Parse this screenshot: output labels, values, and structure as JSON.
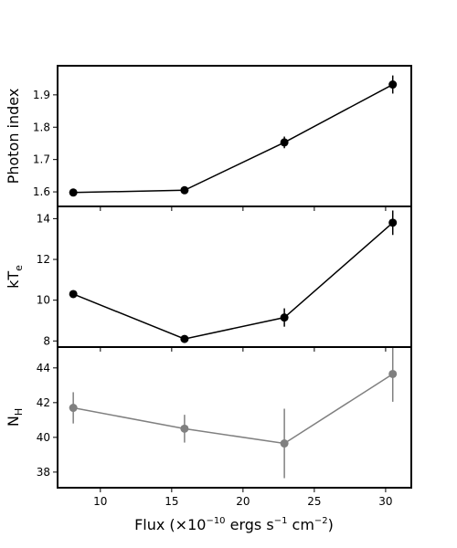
{
  "chart_data": {
    "type": "scatter",
    "xlabel": "Flux (×10⁻¹⁰ ergs s⁻¹ cm⁻²)",
    "xlabel_parts": {
      "pre": "Flux (×10",
      "e1": "−10",
      "mid": " ergs s",
      "e2": "−1",
      "mid2": " cm",
      "e3": "−2",
      "post": ")"
    },
    "xlim": [
      7,
      31.8
    ],
    "xticks": [
      10,
      15,
      20,
      25,
      30
    ],
    "x": [
      8.1,
      15.9,
      22.9,
      30.5
    ],
    "panels": [
      {
        "ylabel": "Photon index",
        "ylabel_parts": {
          "base": "Photon index",
          "sub": ""
        },
        "ylim": [
          1.555,
          1.99
        ],
        "yticks": [
          1.6,
          1.7,
          1.8,
          1.9
        ],
        "ytick_labels": [
          "1.6",
          "1.7",
          "1.8",
          "1.9"
        ],
        "color": "#000000",
        "y": [
          1.598,
          1.605,
          1.753,
          1.932
        ],
        "yerr": [
          0.005,
          0.006,
          0.018,
          0.028
        ]
      },
      {
        "ylabel": "kTe",
        "ylabel_parts": {
          "base": "kT",
          "sub": "e"
        },
        "ylim": [
          7.7,
          14.6
        ],
        "yticks": [
          8,
          10,
          12,
          14
        ],
        "ytick_labels": [
          "8",
          "10",
          "12",
          "14"
        ],
        "color": "#000000",
        "y": [
          10.3,
          8.1,
          9.15,
          13.8
        ],
        "yerr": [
          0.15,
          0.15,
          0.45,
          0.6
        ]
      },
      {
        "ylabel": "NH",
        "ylabel_parts": {
          "base": "N",
          "sub": "H"
        },
        "ylim": [
          37.1,
          45.2
        ],
        "yticks": [
          38,
          40,
          42,
          44
        ],
        "ytick_labels": [
          "38",
          "40",
          "42",
          "44"
        ],
        "color": "#808080",
        "y": [
          41.7,
          40.5,
          39.65,
          43.65
        ],
        "yerr": [
          0.9,
          0.8,
          2.0,
          1.6
        ]
      }
    ]
  }
}
